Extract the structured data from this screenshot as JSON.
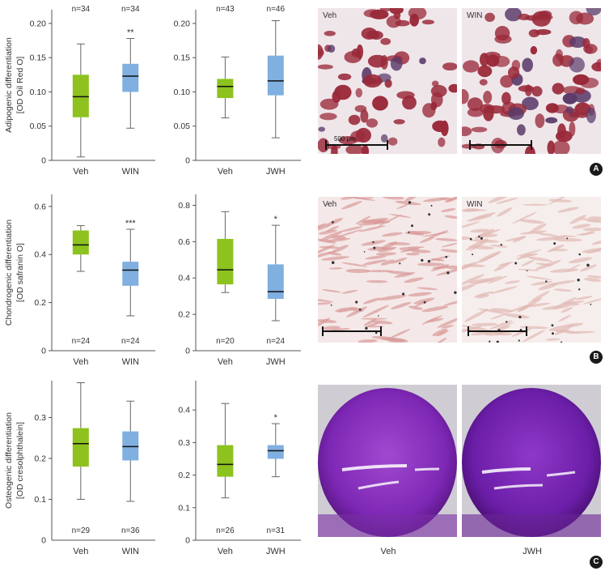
{
  "colors": {
    "veh": "#8dc21f",
    "treat": "#7fb0e0",
    "axis": "#555555"
  },
  "rows": [
    {
      "ylabel_line1": "Adipogenic differentiation",
      "ylabel_line2": "[OD Oil Red O]",
      "badge": "A",
      "photos": {
        "left_label": "Veh",
        "right_label": "WIN",
        "scale_text": "500 μm",
        "style": "oil"
      }
    },
    {
      "ylabel_line1": "Chondrogenic differentiation",
      "ylabel_line2": "[OD safranin O]",
      "badge": "B",
      "photos": {
        "left_label": "Veh",
        "right_label": "WIN",
        "style": "safranin"
      }
    },
    {
      "ylabel_line1": "Osteogenic differentiation",
      "ylabel_line2": "[OD cresolphthalein]",
      "badge": "C",
      "photos": {
        "left_label": "Veh",
        "right_label": "JWH",
        "style": "well"
      }
    }
  ],
  "chart_data": [
    {
      "type": "box",
      "row": 0,
      "col": 0,
      "ylim": [
        0,
        0.22
      ],
      "yticks": [
        0,
        0.05,
        0.1,
        0.15,
        0.2
      ],
      "tick_labels": [
        "0",
        "0.05",
        "0.10",
        "0.15",
        "0.20"
      ],
      "n_pos": "top",
      "boxes": [
        {
          "label": "Veh",
          "n": "n=34",
          "sig": "",
          "min": 0.005,
          "q1": 0.063,
          "median": 0.093,
          "q3": 0.125,
          "max": 0.17,
          "group": "veh"
        },
        {
          "label": "WIN",
          "n": "n=34",
          "sig": "**",
          "min": 0.047,
          "q1": 0.1,
          "median": 0.123,
          "q3": 0.141,
          "max": 0.178,
          "group": "treat"
        }
      ]
    },
    {
      "type": "box",
      "row": 0,
      "col": 1,
      "ylim": [
        0,
        0.22
      ],
      "yticks": [
        0,
        0.05,
        0.1,
        0.15,
        0.2
      ],
      "tick_labels": [
        "0",
        "0.05",
        "0.10",
        "0.15",
        "0.20"
      ],
      "n_pos": "top",
      "boxes": [
        {
          "label": "Veh",
          "n": "n=43",
          "sig": "",
          "min": 0.062,
          "q1": 0.091,
          "median": 0.108,
          "q3": 0.119,
          "max": 0.151,
          "group": "veh"
        },
        {
          "label": "JWH",
          "n": "n=46",
          "sig": "",
          "min": 0.033,
          "q1": 0.095,
          "median": 0.116,
          "q3": 0.153,
          "max": 0.204,
          "group": "treat"
        }
      ]
    },
    {
      "type": "box",
      "row": 1,
      "col": 0,
      "ylim": [
        0,
        0.65
      ],
      "yticks": [
        0,
        0.2,
        0.4,
        0.6
      ],
      "tick_labels": [
        "0",
        "0.2",
        "0.4",
        "0.6"
      ],
      "n_pos": "bottom",
      "boxes": [
        {
          "label": "Veh",
          "n": "n=24",
          "sig": "",
          "min": 0.33,
          "q1": 0.4,
          "median": 0.44,
          "q3": 0.5,
          "max": 0.52,
          "group": "veh"
        },
        {
          "label": "WIN",
          "n": "n=24",
          "sig": "***",
          "min": 0.145,
          "q1": 0.27,
          "median": 0.335,
          "q3": 0.37,
          "max": 0.505,
          "group": "treat"
        }
      ]
    },
    {
      "type": "box",
      "row": 1,
      "col": 1,
      "ylim": [
        0,
        0.86
      ],
      "yticks": [
        0,
        0.2,
        0.4,
        0.6,
        0.8
      ],
      "tick_labels": [
        "0",
        "0.2",
        "0.4",
        "0.6",
        "0.8"
      ],
      "n_pos": "bottom",
      "boxes": [
        {
          "label": "Veh",
          "n": "n=20",
          "sig": "",
          "min": 0.32,
          "q1": 0.365,
          "median": 0.445,
          "q3": 0.615,
          "max": 0.765,
          "group": "veh"
        },
        {
          "label": "JWH",
          "n": "n=24",
          "sig": "*",
          "min": 0.165,
          "q1": 0.285,
          "median": 0.325,
          "q3": 0.475,
          "max": 0.69,
          "group": "treat"
        }
      ]
    },
    {
      "type": "box",
      "row": 2,
      "col": 0,
      "ylim": [
        0,
        0.39
      ],
      "yticks": [
        0.1,
        0.2,
        0.3
      ],
      "tick_labels": [
        "0.1",
        "0.2",
        "0.3"
      ],
      "zero_label": "0",
      "n_pos": "bottom",
      "boxes": [
        {
          "label": "Veh",
          "n": "n=29",
          "sig": "",
          "min": 0.1,
          "q1": 0.18,
          "median": 0.236,
          "q3": 0.274,
          "max": 0.385,
          "group": "veh"
        },
        {
          "label": "WIN",
          "n": "n=36",
          "sig": "",
          "min": 0.095,
          "q1": 0.195,
          "median": 0.229,
          "q3": 0.266,
          "max": 0.34,
          "group": "treat"
        }
      ]
    },
    {
      "type": "box",
      "row": 2,
      "col": 1,
      "ylim": [
        0,
        0.49
      ],
      "yticks": [
        0,
        0.1,
        0.2,
        0.3,
        0.4
      ],
      "tick_labels": [
        "0",
        "0.1",
        "0.2",
        "0.3",
        "0.4"
      ],
      "n_pos": "bottom",
      "boxes": [
        {
          "label": "Veh",
          "n": "n=26",
          "sig": "",
          "min": 0.13,
          "q1": 0.195,
          "median": 0.233,
          "q3": 0.292,
          "max": 0.42,
          "group": "veh"
        },
        {
          "label": "JWH",
          "n": "n=31",
          "sig": "*",
          "min": 0.195,
          "q1": 0.25,
          "median": 0.275,
          "q3": 0.292,
          "max": 0.358,
          "group": "treat"
        }
      ]
    }
  ]
}
